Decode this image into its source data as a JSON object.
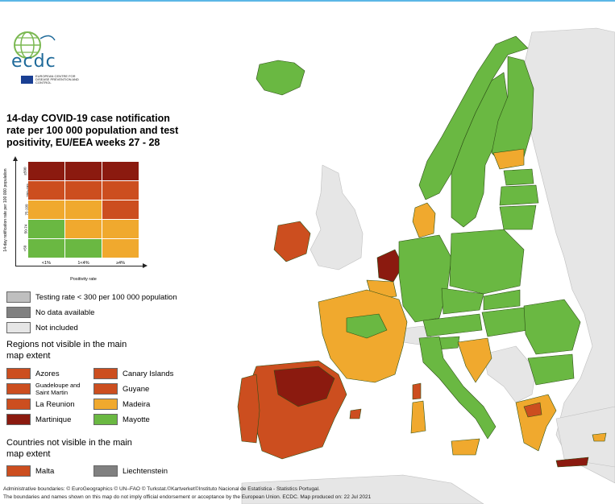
{
  "colors": {
    "green": "#6ab842",
    "orange": "#f0a92e",
    "red_orange": "#cc4e1f",
    "dark_red": "#8b1a0f",
    "light_grey": "#bfbfbf",
    "dark_grey": "#808080",
    "not_included": "#e6e6e6",
    "sea": "#ffffff",
    "border": "#2d5016"
  },
  "logo": {
    "word": "ecdc",
    "subtitle": "EUROPEAN CENTRE FOR DISEASE PREVENTION AND CONTROL"
  },
  "title": "14-day COVID-19 case notification rate per 100 000 population and test positivity, EU/EEA weeks 27 - 28",
  "matrix": {
    "y_label": "14-day notification rate per 100 000 population",
    "x_label": "Positivity rate",
    "y_ticks": [
      "≥500",
      "200-499",
      "75-199",
      "50-74",
      "<50"
    ],
    "x_ticks": [
      "<1%",
      "1<4%",
      "≥4%"
    ],
    "cells": [
      [
        "dark_red",
        "dark_red",
        "dark_red"
      ],
      [
        "red_orange",
        "red_orange",
        "red_orange"
      ],
      [
        "orange",
        "orange",
        "red_orange"
      ],
      [
        "green",
        "orange",
        "orange"
      ],
      [
        "green",
        "green",
        "orange"
      ]
    ]
  },
  "legend": {
    "testing_rate": "Testing rate < 300 per 100 000 population",
    "no_data": "No data available",
    "not_included": "Not included",
    "regions_header": "Regions not visible in the main map extent",
    "regions": [
      {
        "name": "Azores",
        "color": "red_orange"
      },
      {
        "name": "Canary Islands",
        "color": "red_orange"
      },
      {
        "name": "Guadeloupe and Saint Martin",
        "color": "red_orange"
      },
      {
        "name": "Guyane",
        "color": "red_orange"
      },
      {
        "name": "La Reunion",
        "color": "red_orange"
      },
      {
        "name": "Madeira",
        "color": "orange"
      },
      {
        "name": "Martinique",
        "color": "dark_red"
      },
      {
        "name": "Mayotte",
        "color": "green"
      }
    ],
    "countries_header": "Countries not visible in the main map extent",
    "countries": [
      {
        "name": "Malta",
        "color": "red_orange"
      },
      {
        "name": "Liechtenstein",
        "color": "dark_grey"
      }
    ]
  },
  "footer": {
    "line1": "Administrative boundaries: © EuroGeographics © UN–FAO © Turkstat.©Kartverket©Instituto Nacional de Estatística - Statistics Portugal.",
    "line2": "The boundaries and names shown on this map do not imply official endorsement or acceptance by the European Union. ECDC. Map produced on: 22 Jul 2021"
  }
}
